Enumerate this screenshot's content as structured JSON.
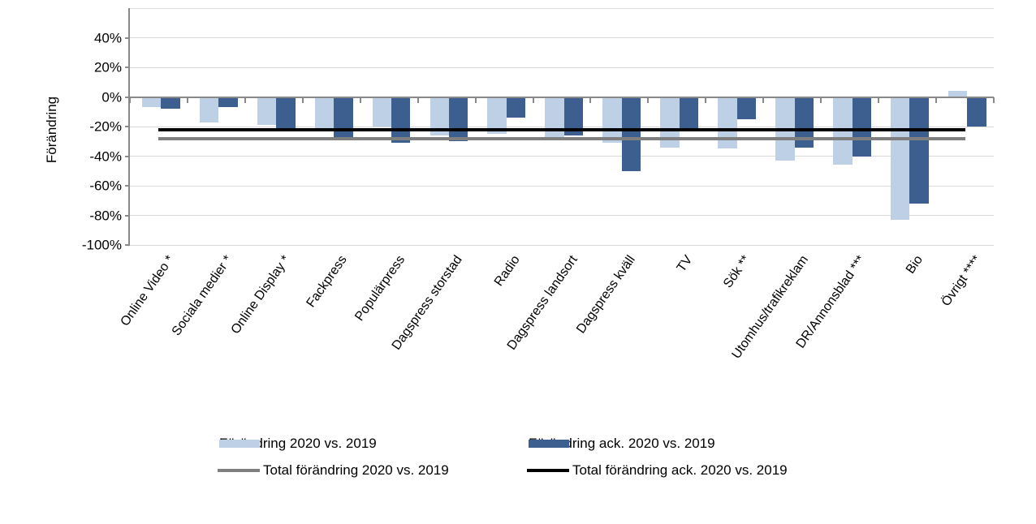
{
  "y_axis": {
    "title": "Förändring",
    "tick_values": [
      40,
      20,
      0,
      -20,
      -40,
      -60,
      -80,
      -100
    ],
    "tick_labels": [
      "40%",
      "20%",
      "0%",
      "-20%",
      "-40%",
      "-60%",
      "-80%",
      "-100%"
    ]
  },
  "colors": {
    "series_light": "#bed0e6",
    "series_dark": "#3d5f90",
    "total_line_gray": "#7f7f7f",
    "total_line_black": "#000000",
    "gridline": "#d9d9d9",
    "axis": "#898989"
  },
  "chart_data": {
    "type": "bar",
    "title": "",
    "xlabel": "",
    "ylabel": "Förändring",
    "ylim": [
      -100,
      60
    ],
    "yticks": [
      40,
      20,
      0,
      -20,
      -40,
      -60,
      -80,
      -100
    ],
    "grid": true,
    "legend_position": "bottom",
    "categories": [
      "Online Video *",
      "Sociala medier *",
      "Online Display *",
      "Fackpress",
      "Populärpress",
      "Dagspress storstad",
      "Radio",
      "Dagspress landsort",
      "Dagspress kväll",
      "TV",
      "Sök **",
      "Utomhus/trafikreklam",
      "DR/Annonsblad ***",
      "Bio",
      "Övrigt ****"
    ],
    "series": [
      {
        "name": "Förändring 2020 vs. 2019",
        "color": "#bed0e6",
        "values": [
          -7,
          -17,
          -19,
          -21,
          -20,
          -26,
          -25,
          -27,
          -31,
          -34,
          -35,
          -43,
          -46,
          -83,
          4
        ]
      },
      {
        "name": "Förändring ack. 2020 vs. 2019",
        "color": "#3d5f90",
        "values": [
          -8,
          -7,
          -21,
          -28,
          -31,
          -30,
          -14,
          -26,
          -50,
          -22,
          -15,
          -34,
          -40,
          -72,
          -20
        ]
      }
    ],
    "total_lines": [
      {
        "name": "Total förändring 2020 vs. 2019",
        "color": "#7f7f7f",
        "value": -28
      },
      {
        "name": "Total förändring ack. 2020 vs. 2019",
        "color": "#000000",
        "value": -22
      }
    ]
  },
  "legend": {
    "row1_col1": "Förändring 2020 vs. 2019",
    "row1_col2": "Förändring ack. 2020 vs. 2019",
    "row2_col1": "Total förändring 2020 vs. 2019",
    "row2_col2": "Total förändring ack. 2020 vs. 2019"
  }
}
